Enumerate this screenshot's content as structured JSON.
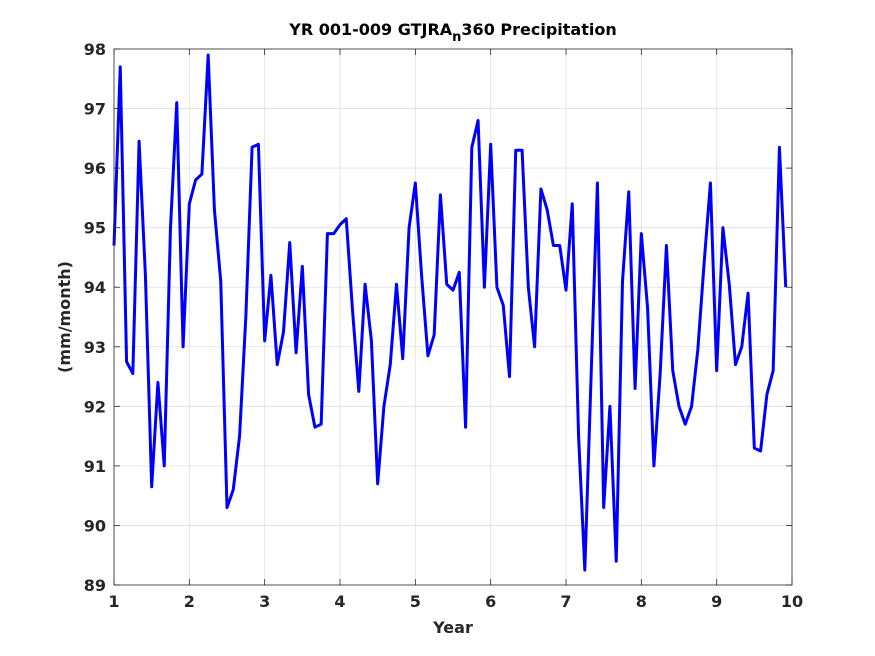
{
  "chart_data": {
    "type": "line",
    "title": "YR 001-009 GTJRA",
    "title_subscript": "n",
    "title_suffix": "360 Precipitation",
    "xlabel": "Year",
    "ylabel": "(mm/month)",
    "xlim": [
      1,
      10
    ],
    "ylim": [
      89,
      98
    ],
    "xticks": [
      "1",
      "2",
      "3",
      "4",
      "5",
      "6",
      "7",
      "8",
      "9",
      "10"
    ],
    "yticks": [
      "89",
      "90",
      "91",
      "92",
      "93",
      "94",
      "95",
      "96",
      "97",
      "98"
    ],
    "grid": true,
    "line_color": "#0000ff",
    "series": [
      {
        "x": [
          1.0,
          1.083,
          1.167,
          1.25,
          1.333,
          1.417,
          1.5,
          1.583,
          1.667,
          1.75,
          1.833,
          1.917,
          2.0,
          2.083,
          2.167,
          2.25,
          2.333,
          2.417,
          2.5,
          2.583,
          2.667,
          2.75,
          2.833,
          2.917,
          3.0,
          3.083,
          3.167,
          3.25,
          3.333,
          3.417,
          3.5,
          3.583,
          3.667,
          3.75,
          3.833,
          3.917,
          4.0,
          4.083,
          4.167,
          4.25,
          4.333,
          4.417,
          4.5,
          4.583,
          4.667,
          4.75,
          4.833,
          4.917,
          5.0,
          5.083,
          5.167,
          5.25,
          5.333,
          5.417,
          5.5,
          5.583,
          5.667,
          5.75,
          5.833,
          5.917,
          6.0,
          6.083,
          6.167,
          6.25,
          6.333,
          6.417,
          6.5,
          6.583,
          6.667,
          6.75,
          6.833,
          6.917,
          7.0,
          7.083,
          7.167,
          7.25,
          7.333,
          7.417,
          7.5,
          7.583,
          7.667,
          7.75,
          7.833,
          7.917,
          8.0,
          8.083,
          8.167,
          8.25,
          8.333,
          8.417,
          8.5,
          8.583,
          8.667,
          8.75,
          8.833,
          8.917,
          9.0,
          9.083,
          9.167,
          9.25,
          9.333,
          9.417,
          9.5,
          9.583,
          9.667,
          9.75,
          9.833,
          9.917
        ],
        "values": [
          94.7,
          97.7,
          92.75,
          92.55,
          96.45,
          94.2,
          90.65,
          92.4,
          91.0,
          95.0,
          97.1,
          93.0,
          95.4,
          95.8,
          95.9,
          97.9,
          95.3,
          94.1,
          90.3,
          90.6,
          91.5,
          93.5,
          96.35,
          96.4,
          93.1,
          94.2,
          92.7,
          93.25,
          94.75,
          92.9,
          94.35,
          92.2,
          91.65,
          91.7,
          94.9,
          94.9,
          95.05,
          95.15,
          93.6,
          92.25,
          94.05,
          93.1,
          90.7,
          92.0,
          92.7,
          94.05,
          92.8,
          95.0,
          95.75,
          94.2,
          92.85,
          93.2,
          95.55,
          94.05,
          93.95,
          94.25,
          91.65,
          96.35,
          96.8,
          94.0,
          96.4,
          94.0,
          93.7,
          92.5,
          96.3,
          96.3,
          94.0,
          93.0,
          95.65,
          95.3,
          94.7,
          94.7,
          93.95,
          95.4,
          91.5,
          89.25,
          92.5,
          95.75,
          90.3,
          92.0,
          89.4,
          94.1,
          95.6,
          92.3,
          94.9,
          93.65,
          91.0,
          92.55,
          94.7,
          92.6,
          92.0,
          91.7,
          92.0,
          92.95,
          94.4,
          95.75,
          92.6,
          95.0,
          94.05,
          92.7,
          93.0,
          93.9,
          91.3,
          91.25,
          92.2,
          92.6,
          96.35,
          94.0
        ]
      }
    ]
  }
}
